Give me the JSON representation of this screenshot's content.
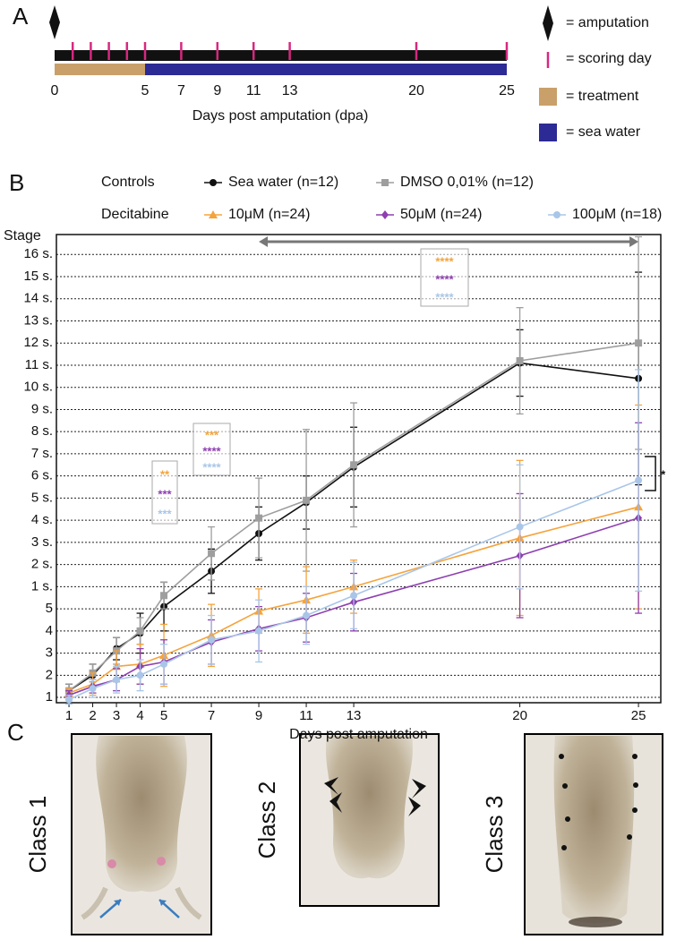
{
  "panel_labels": [
    "A",
    "B",
    "C"
  ],
  "timeline": {
    "xlim": [
      0,
      25
    ],
    "xticks": [
      0,
      5,
      7,
      9,
      11,
      13,
      20,
      25
    ],
    "scoring_days": [
      1,
      2,
      3,
      4,
      5,
      7,
      9,
      11,
      13,
      20,
      25
    ],
    "treatment": [
      0,
      5
    ],
    "sea_water": [
      5,
      25
    ],
    "treatment_color": "#c9a06a",
    "sea_water_color": "#2c2a94",
    "scoring_color": "#d6287f",
    "xlabel": "Days post amputation (dpa)",
    "legend": [
      "= amputation",
      "= scoring day",
      "= treatment",
      "= sea water"
    ]
  },
  "chart_data": {
    "type": "line",
    "xlabel": "Days post amputation",
    "ylabel": "Stage",
    "legend_groups": [
      "Controls",
      "Decitabine"
    ],
    "x": [
      1,
      2,
      3,
      4,
      5,
      7,
      9,
      11,
      13,
      20,
      25
    ],
    "xlim": [
      0.47,
      25.94
    ],
    "xticks": [
      1,
      2,
      3,
      4,
      5,
      7,
      9,
      11,
      13,
      20,
      25
    ],
    "ylim": [
      0.76,
      21.9
    ],
    "yticks": [
      1,
      2,
      3,
      4,
      5,
      {
        "value": 6,
        "label": "1 s."
      },
      {
        "value": 7,
        "label": "2 s."
      },
      {
        "value": 8,
        "label": "3 s."
      },
      {
        "value": 9,
        "label": "4 s."
      },
      {
        "value": 10,
        "label": "5 s."
      },
      {
        "value": 11,
        "label": "6 s."
      },
      {
        "value": 12,
        "label": "7 s."
      },
      {
        "value": 13,
        "label": "8 s."
      },
      {
        "value": 14,
        "label": "9 s."
      },
      {
        "value": 15,
        "label": "10 s."
      },
      {
        "value": 16,
        "label": "11 s."
      },
      {
        "value": 17,
        "label": "12 s."
      },
      {
        "value": 18,
        "label": "13 s."
      },
      {
        "value": 19,
        "label": "14 s."
      },
      {
        "value": 20,
        "label": "15 s."
      },
      {
        "value": 21,
        "label": "16 s."
      }
    ],
    "grid": true,
    "series": [
      {
        "name": "Sea water (n=12)",
        "color": "#111111",
        "marker": "circle",
        "values": [
          1.3,
          2.0,
          3.2,
          3.9,
          5.1,
          6.7,
          8.4,
          9.8,
          11.4,
          16.1,
          15.4
        ],
        "errors": [
          0.3,
          0.5,
          0.5,
          0.9,
          1.1,
          1.0,
          1.2,
          1.2,
          1.8,
          1.5,
          4.8
        ]
      },
      {
        "name": "DMSO 0,01% (n=12)",
        "color": "#9e9e9e",
        "marker": "square",
        "values": [
          1.3,
          2.1,
          3.1,
          4.0,
          5.6,
          7.5,
          9.1,
          9.9,
          11.5,
          16.2,
          17.0
        ],
        "errors": [
          0.3,
          0.4,
          0.6,
          0.6,
          0.6,
          1.2,
          1.8,
          3.2,
          2.8,
          2.4,
          4.8
        ]
      },
      {
        "name": "10μM (n=24)",
        "color": "#f5a33c",
        "marker": "triangle",
        "values": [
          1.2,
          1.6,
          2.4,
          2.5,
          2.9,
          3.8,
          4.9,
          5.4,
          6.0,
          8.2,
          9.6
        ],
        "errors": [
          0.2,
          0.5,
          0.7,
          0.9,
          1.4,
          1.4,
          1.0,
          1.5,
          1.2,
          3.5,
          4.6
        ]
      },
      {
        "name": "50μM (n=24)",
        "color": "#8e3fb0",
        "marker": "diamond",
        "values": [
          1.1,
          1.5,
          1.8,
          2.4,
          2.6,
          3.5,
          4.1,
          4.6,
          5.3,
          7.4,
          9.1
        ],
        "errors": [
          0.2,
          0.3,
          0.5,
          0.8,
          1.0,
          1.0,
          1.0,
          1.1,
          1.3,
          2.8,
          4.3
        ]
      },
      {
        "name": "100μM (n=18)",
        "color": "#a9c6e8",
        "marker": "circle",
        "values": [
          0.9,
          1.4,
          1.8,
          2.0,
          2.5,
          3.6,
          4.0,
          4.7,
          5.6,
          8.7,
          10.8
        ],
        "errors": [
          0.2,
          0.4,
          0.6,
          0.7,
          0.9,
          1.1,
          1.4,
          1.3,
          1.5,
          2.8,
          5.0
        ]
      }
    ],
    "significance": [
      [
        "**",
        "***",
        "***"
      ],
      [
        "***",
        "****",
        "****"
      ],
      [
        "****",
        "****",
        "****"
      ]
    ],
    "bracket_label": "*"
  },
  "panel_c": {
    "classes": [
      "Class 1",
      "Class 2",
      "Class 3"
    ]
  }
}
